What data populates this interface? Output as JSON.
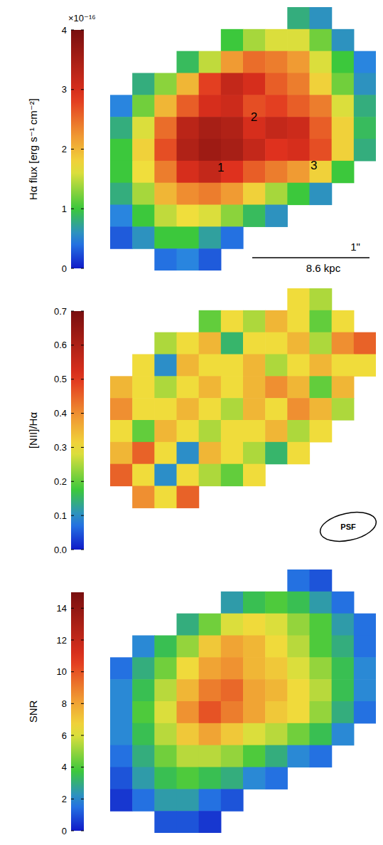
{
  "chart_data": [
    {
      "type": "heatmap",
      "tick_labels": false,
      "colorbar": {
        "label": "Hα flux [erg s⁻¹ cm⁻²]",
        "multiplier": "×10⁻¹⁶",
        "lim": [
          0,
          4
        ],
        "ticks": [
          0,
          1,
          2,
          3,
          4
        ]
      },
      "annotations": [
        "1",
        "2",
        "3"
      ],
      "scale_bar": [
        "1\"",
        "8.6 kpc"
      ],
      "cells": [
        [
          null,
          null,
          null,
          null,
          null,
          null,
          null,
          null,
          0.8,
          0.6,
          null,
          null
        ],
        [
          null,
          null,
          null,
          null,
          null,
          1.0,
          1.4,
          1.6,
          1.6,
          1.2,
          0.6,
          null
        ],
        [
          null,
          null,
          null,
          0.9,
          1.5,
          2.2,
          2.5,
          2.4,
          2.2,
          1.6,
          1.0,
          0.5
        ],
        [
          null,
          0.8,
          1.3,
          2.0,
          2.8,
          3.2,
          3.0,
          2.6,
          2.4,
          1.8,
          1.2,
          0.6
        ],
        [
          0.5,
          1.2,
          2.0,
          2.6,
          3.0,
          3.1,
          2.7,
          2.8,
          2.6,
          2.4,
          1.6,
          0.8
        ],
        [
          0.8,
          1.6,
          2.5,
          3.3,
          3.5,
          3.4,
          3.0,
          3.2,
          3.1,
          2.6,
          1.8,
          0.9
        ],
        [
          1.0,
          1.8,
          2.7,
          3.4,
          3.6,
          3.5,
          3.2,
          2.9,
          3.0,
          2.7,
          1.8,
          0.8
        ],
        [
          1.0,
          1.7,
          2.4,
          3.0,
          3.2,
          2.9,
          2.6,
          2.4,
          2.2,
          1.8,
          1.0,
          null
        ],
        [
          0.8,
          1.4,
          2.0,
          2.3,
          2.4,
          2.2,
          1.8,
          1.4,
          1.0,
          0.6,
          null,
          null
        ],
        [
          0.5,
          1.0,
          1.5,
          1.7,
          1.6,
          1.3,
          0.9,
          0.6,
          null,
          null,
          null,
          null
        ],
        [
          0.3,
          0.6,
          1.0,
          1.0,
          0.7,
          0.4,
          null,
          null,
          null,
          null,
          null,
          null
        ],
        [
          null,
          null,
          0.4,
          0.5,
          0.3,
          null,
          null,
          null,
          null,
          null,
          null,
          null
        ]
      ]
    },
    {
      "type": "heatmap",
      "tick_labels": false,
      "colorbar": {
        "label": "[NII]/Hα",
        "lim": [
          0,
          0.7
        ],
        "ticks": [
          {
            "value": 0,
            "label": "0.0"
          },
          0.1,
          0.2,
          0.3,
          0.4,
          0.5,
          0.6,
          0.7
        ]
      },
      "psf_label": "PSF",
      "cells": [
        [
          null,
          null,
          null,
          null,
          null,
          null,
          null,
          null,
          0.3,
          0.25,
          null,
          null
        ],
        [
          null,
          null,
          null,
          null,
          0.2,
          0.3,
          0.25,
          0.35,
          0.3,
          0.2,
          0.3,
          null
        ],
        [
          null,
          null,
          0.25,
          0.3,
          0.35,
          0.15,
          0.3,
          0.3,
          0.35,
          0.25,
          0.4,
          0.45
        ],
        [
          null,
          0.3,
          0.1,
          0.35,
          0.3,
          0.3,
          0.35,
          0.25,
          0.3,
          0.35,
          0.3,
          0.3
        ],
        [
          0.35,
          0.3,
          0.25,
          0.3,
          0.35,
          0.3,
          0.35,
          0.4,
          0.35,
          0.2,
          0.35,
          null
        ],
        [
          0.4,
          0.3,
          0.3,
          0.35,
          0.3,
          0.25,
          0.35,
          0.3,
          0.4,
          0.35,
          0.25,
          null
        ],
        [
          0.3,
          0.2,
          0.35,
          0.3,
          0.25,
          0.3,
          0.3,
          0.35,
          0.25,
          0.3,
          null,
          null
        ],
        [
          0.35,
          0.45,
          0.3,
          0.1,
          0.35,
          0.3,
          0.25,
          0.15,
          0.3,
          null,
          null,
          null
        ],
        [
          0.45,
          0.3,
          0.1,
          0.3,
          0.25,
          0.2,
          0.3,
          null,
          null,
          null,
          null,
          null
        ],
        [
          null,
          0.4,
          0.3,
          0.45,
          null,
          null,
          null,
          null,
          null,
          null,
          null,
          null
        ],
        [
          null,
          null,
          null,
          null,
          null,
          null,
          null,
          null,
          null,
          null,
          null,
          null
        ],
        [
          null,
          null,
          null,
          null,
          null,
          null,
          null,
          null,
          null,
          null,
          null,
          null
        ]
      ]
    },
    {
      "type": "heatmap",
      "tick_labels": false,
      "colorbar": {
        "label": "SNR",
        "lim": [
          0,
          15
        ],
        "ticks": [
          0,
          2,
          4,
          6,
          8,
          10,
          12,
          14
        ]
      },
      "cells": [
        [
          null,
          null,
          null,
          null,
          null,
          null,
          null,
          null,
          1.5,
          1.0,
          null,
          null
        ],
        [
          null,
          null,
          null,
          null,
          null,
          2.5,
          3.5,
          4.0,
          3.5,
          2.5,
          1.5,
          null
        ],
        [
          null,
          null,
          null,
          3.0,
          4.5,
          6.0,
          6.5,
          6.0,
          5.0,
          4.0,
          2.5,
          1.5
        ],
        [
          null,
          2.0,
          3.5,
          5.0,
          7.0,
          8.0,
          7.5,
          6.5,
          5.5,
          4.0,
          3.0,
          1.5
        ],
        [
          1.5,
          3.0,
          4.5,
          6.5,
          8.0,
          8.5,
          7.5,
          7.0,
          6.0,
          5.0,
          3.5,
          2.0
        ],
        [
          2.0,
          3.5,
          5.5,
          7.5,
          9.0,
          9.5,
          8.0,
          7.5,
          6.5,
          5.5,
          3.5,
          2.0
        ],
        [
          2.0,
          4.0,
          6.0,
          8.5,
          10.0,
          9.0,
          8.0,
          7.0,
          6.5,
          5.0,
          3.0,
          1.5
        ],
        [
          2.0,
          3.5,
          5.5,
          7.0,
          8.0,
          7.0,
          6.0,
          5.5,
          4.5,
          3.5,
          2.0,
          null
        ],
        [
          1.5,
          3.0,
          4.5,
          5.5,
          5.5,
          5.0,
          4.0,
          3.0,
          2.0,
          1.5,
          null,
          null
        ],
        [
          1.0,
          2.5,
          3.5,
          4.0,
          3.5,
          3.0,
          2.0,
          1.5,
          null,
          null,
          null,
          null
        ],
        [
          0.5,
          1.5,
          2.5,
          2.5,
          1.5,
          1.0,
          null,
          null,
          null,
          null,
          null,
          null
        ],
        [
          null,
          null,
          1.0,
          1.0,
          0.5,
          null,
          null,
          null,
          null,
          null,
          null,
          null
        ]
      ]
    }
  ]
}
